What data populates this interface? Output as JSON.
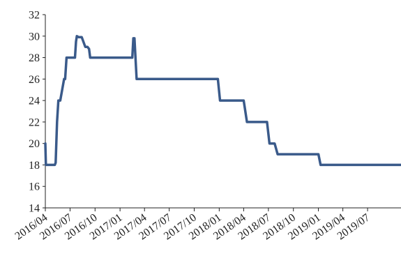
{
  "chart_data": {
    "type": "line",
    "title": "",
    "xlabel": "",
    "ylabel": "",
    "ylim": [
      14,
      32
    ],
    "yticks": [
      14,
      16,
      18,
      20,
      22,
      24,
      26,
      28,
      30,
      32
    ],
    "xlim": [
      "2016-03-31",
      "2019-10-31"
    ],
    "xticks": [
      {
        "date": "2016-03-31",
        "label": "2016/04"
      },
      {
        "date": "2016-06-30",
        "label": "2016/07"
      },
      {
        "date": "2016-09-30",
        "label": "2016/10"
      },
      {
        "date": "2016-12-31",
        "label": "2017/01"
      },
      {
        "date": "2017-03-31",
        "label": "2017/04"
      },
      {
        "date": "2017-06-30",
        "label": "2017/07"
      },
      {
        "date": "2017-09-30",
        "label": "2017/10"
      },
      {
        "date": "2017-12-31",
        "label": "2018/01"
      },
      {
        "date": "2018-03-31",
        "label": "2018/04"
      },
      {
        "date": "2018-06-30",
        "label": "2018/07"
      },
      {
        "date": "2018-09-30",
        "label": "2018/10"
      },
      {
        "date": "2018-12-31",
        "label": "2019/01"
      },
      {
        "date": "2019-03-31",
        "label": "2019/04"
      },
      {
        "date": "2019-06-30",
        "label": "2019/07"
      }
    ],
    "grid": false,
    "legend": "none",
    "series": [
      {
        "color": "#3a5a8a",
        "points": [
          [
            "2016-03-31",
            20
          ],
          [
            "2016-04-02",
            18
          ],
          [
            "2016-05-05",
            18
          ],
          [
            "2016-05-08",
            18.2
          ],
          [
            "2016-05-13",
            22
          ],
          [
            "2016-05-18",
            24
          ],
          [
            "2016-05-25",
            24
          ],
          [
            "2016-06-08",
            26
          ],
          [
            "2016-06-12",
            26
          ],
          [
            "2016-06-17",
            28
          ],
          [
            "2016-07-18",
            28
          ],
          [
            "2016-07-22",
            29.5
          ],
          [
            "2016-07-25",
            30
          ],
          [
            "2016-08-01",
            29.9
          ],
          [
            "2016-08-05",
            29.9
          ],
          [
            "2016-08-12",
            29.9
          ],
          [
            "2016-08-25",
            29
          ],
          [
            "2016-09-02",
            29
          ],
          [
            "2016-09-08",
            28.8
          ],
          [
            "2016-09-12",
            28
          ],
          [
            "2016-12-31",
            28
          ],
          [
            "2017-02-14",
            28
          ],
          [
            "2017-02-18",
            29.8
          ],
          [
            "2017-02-22",
            29.8
          ],
          [
            "2017-03-02",
            26
          ],
          [
            "2017-03-31",
            26
          ],
          [
            "2017-12-26",
            26
          ],
          [
            "2018-01-03",
            24
          ],
          [
            "2018-01-15",
            24
          ],
          [
            "2018-03-31",
            24
          ],
          [
            "2018-04-03",
            23.5
          ],
          [
            "2018-04-12",
            22
          ],
          [
            "2018-06-25",
            22
          ],
          [
            "2018-07-04",
            20
          ],
          [
            "2018-07-23",
            20
          ],
          [
            "2018-08-03",
            19
          ],
          [
            "2018-12-31",
            19
          ],
          [
            "2019-01-08",
            18
          ],
          [
            "2019-01-31",
            18
          ],
          [
            "2019-10-31",
            18
          ]
        ]
      }
    ]
  }
}
